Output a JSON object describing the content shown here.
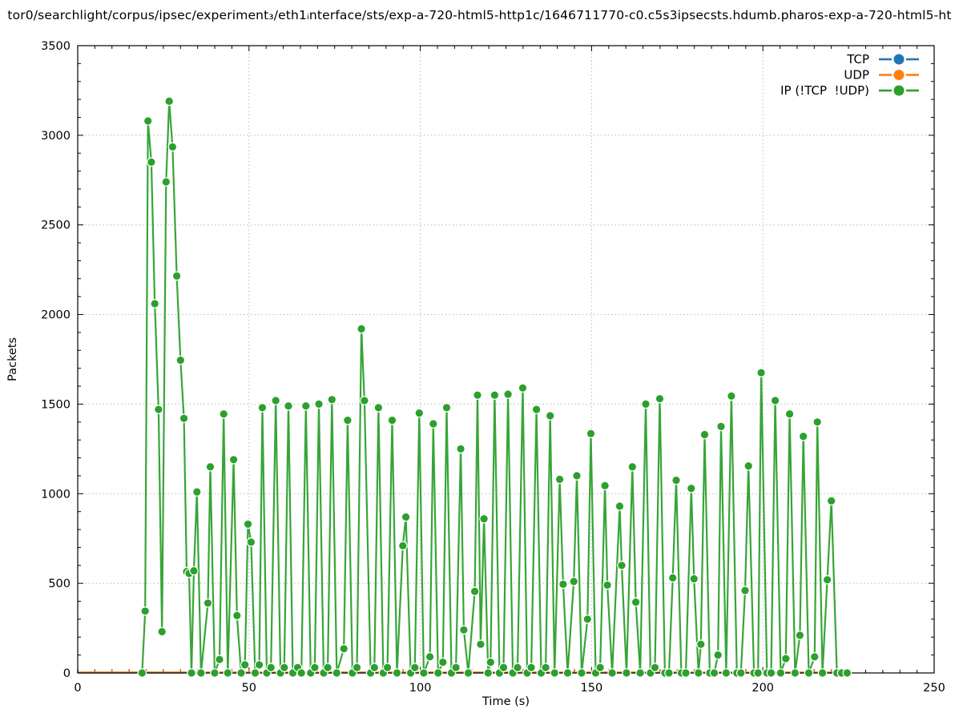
{
  "title": "tor0/searchlight/corpus/ipsec/experiment₃/eth1ᵢnterface/sts/exp-a-720-html5-http1c/1646711770-c0.c5s3ipsecsts.hdumb.pharos-exp-a-720-html5-ht",
  "colors": {
    "tcp": "#1f77b4",
    "udp": "#ff7f0e",
    "ip": "#2ca02c",
    "grid": "#b8b8b8",
    "axis": "#000000",
    "background": "#ffffff"
  },
  "legend": {
    "position": "top-right-inside",
    "entries": [
      {
        "label": "TCP",
        "color": "#1f77b4"
      },
      {
        "label": "UDP",
        "color": "#ff7f0e"
      },
      {
        "label": "IP (!TCP  !UDP)",
        "color": "#2ca02c"
      }
    ]
  },
  "chart_data": {
    "type": "line",
    "title": "tor0/searchlight/corpus/ipsec/experiment₃/eth1ᵢnterface/sts/exp-a-720-html5-http1c/1646711770-c0.c5s3ipsecsts.hdumb.pharos-exp-a-720-html5-ht",
    "xlabel": "Time (s)",
    "ylabel": "Packets",
    "xlim": [
      0,
      250
    ],
    "ylim": [
      0,
      3500
    ],
    "x_major_ticks": [
      0,
      50,
      100,
      150,
      200,
      250
    ],
    "x_minor_step": 5,
    "y_major_ticks": [
      0,
      500,
      1000,
      1500,
      2000,
      2500,
      3000,
      3500
    ],
    "y_minor_step": 100,
    "grid": "dotted-at-major-ticks",
    "marker_style": "filled-circle",
    "series": [
      {
        "name": "TCP",
        "color": "#1f77b4",
        "style": "linespoints",
        "x_range": [
          0,
          225
        ],
        "constant_value": 0,
        "point_interval_s": 5
      },
      {
        "name": "UDP",
        "color": "#ff7f0e",
        "style": "linespoints",
        "x_range": [
          0,
          225
        ],
        "constant_value": 0,
        "point_interval_s": 5
      },
      {
        "name": "IP (!TCP  !UDP)",
        "color": "#2ca02c",
        "style": "linespoints",
        "points": [
          [
            18.8,
            0
          ],
          [
            19.7,
            345
          ],
          [
            20.5,
            3080
          ],
          [
            21.5,
            2850
          ],
          [
            22.5,
            2060
          ],
          [
            23.6,
            1470
          ],
          [
            24.6,
            230
          ],
          [
            25.8,
            2740
          ],
          [
            26.7,
            3190
          ],
          [
            27.7,
            2935
          ],
          [
            28.9,
            2215
          ],
          [
            30,
            1745
          ],
          [
            31,
            1420
          ],
          [
            31.8,
            565
          ],
          [
            32.5,
            555
          ],
          [
            33.2,
            0
          ],
          [
            33.9,
            570
          ],
          [
            34.8,
            1010
          ],
          [
            36,
            0
          ],
          [
            38,
            390
          ],
          [
            38.7,
            1150
          ],
          [
            40,
            0
          ],
          [
            41.4,
            75
          ],
          [
            42.6,
            1445
          ],
          [
            43.8,
            0
          ],
          [
            45.5,
            1190
          ],
          [
            46.5,
            320
          ],
          [
            47.7,
            0
          ],
          [
            48.8,
            45
          ],
          [
            49.7,
            830
          ],
          [
            50.6,
            730
          ],
          [
            51.8,
            0
          ],
          [
            53,
            45
          ],
          [
            53.9,
            1480
          ],
          [
            55.2,
            0
          ],
          [
            56.4,
            30
          ],
          [
            57.8,
            1520
          ],
          [
            59.2,
            0
          ],
          [
            60.3,
            30
          ],
          [
            61.5,
            1490
          ],
          [
            62.8,
            0
          ],
          [
            64.2,
            30
          ],
          [
            65.3,
            0
          ],
          [
            66.6,
            1490
          ],
          [
            68,
            0
          ],
          [
            69.2,
            30
          ],
          [
            70.4,
            1500
          ],
          [
            71.8,
            0
          ],
          [
            73,
            30
          ],
          [
            74.2,
            1525
          ],
          [
            75.6,
            0
          ],
          [
            77.7,
            135
          ],
          [
            78.8,
            1410
          ],
          [
            80.2,
            0
          ],
          [
            81.5,
            30
          ],
          [
            82.8,
            1920
          ],
          [
            83.7,
            1520
          ],
          [
            85.5,
            0
          ],
          [
            86.6,
            30
          ],
          [
            87.8,
            1480
          ],
          [
            89.2,
            0
          ],
          [
            90.4,
            30
          ],
          [
            91.8,
            1410
          ],
          [
            93.2,
            0
          ],
          [
            94.9,
            710
          ],
          [
            95.8,
            870
          ],
          [
            97.2,
            0
          ],
          [
            98.4,
            30
          ],
          [
            99.7,
            1450
          ],
          [
            101,
            0
          ],
          [
            102.8,
            90
          ],
          [
            103.8,
            1390
          ],
          [
            105.2,
            0
          ],
          [
            106.6,
            60
          ],
          [
            107.7,
            1480
          ],
          [
            109.1,
            0
          ],
          [
            110.4,
            30
          ],
          [
            111.8,
            1250
          ],
          [
            112.7,
            240
          ],
          [
            114,
            0
          ],
          [
            115.9,
            455
          ],
          [
            116.7,
            1550
          ],
          [
            117.6,
            160
          ],
          [
            118.6,
            860
          ],
          [
            119.8,
            0
          ],
          [
            120.5,
            60
          ],
          [
            121.7,
            1550
          ],
          [
            123.1,
            0
          ],
          [
            124.3,
            30
          ],
          [
            125.6,
            1555
          ],
          [
            127,
            0
          ],
          [
            128.4,
            30
          ],
          [
            129.9,
            1590
          ],
          [
            131.2,
            0
          ],
          [
            132.4,
            30
          ],
          [
            133.9,
            1470
          ],
          [
            135.3,
            0
          ],
          [
            136.6,
            30
          ],
          [
            137.9,
            1435
          ],
          [
            139.2,
            0
          ],
          [
            140.7,
            1080
          ],
          [
            141.7,
            495
          ],
          [
            143,
            0
          ],
          [
            144.8,
            510
          ],
          [
            145.7,
            1100
          ],
          [
            147.1,
            0
          ],
          [
            148.8,
            300
          ],
          [
            149.8,
            1335
          ],
          [
            151.2,
            0
          ],
          [
            152.5,
            30
          ],
          [
            153.9,
            1045
          ],
          [
            154.6,
            490
          ],
          [
            156,
            0
          ],
          [
            158.2,
            930
          ],
          [
            158.8,
            600
          ],
          [
            160.2,
            0
          ],
          [
            161.9,
            1150
          ],
          [
            162.9,
            395
          ],
          [
            164.2,
            0
          ],
          [
            165.8,
            1500
          ],
          [
            167.2,
            0
          ],
          [
            168.5,
            30
          ],
          [
            169.9,
            1530
          ],
          [
            171.4,
            0
          ],
          [
            172.6,
            0
          ],
          [
            173.7,
            530
          ],
          [
            174.7,
            1075
          ],
          [
            176.2,
            0
          ],
          [
            177.5,
            0
          ],
          [
            179.1,
            1030
          ],
          [
            179.9,
            525
          ],
          [
            181.2,
            0
          ],
          [
            181.9,
            160
          ],
          [
            183,
            1330
          ],
          [
            184.5,
            0
          ],
          [
            185.8,
            0
          ],
          [
            186.9,
            100
          ],
          [
            187.8,
            1375
          ],
          [
            189.3,
            0
          ],
          [
            190.8,
            1545
          ],
          [
            192.4,
            0
          ],
          [
            193.6,
            0
          ],
          [
            194.8,
            460
          ],
          [
            195.8,
            1155
          ],
          [
            197.4,
            0
          ],
          [
            198.6,
            0
          ],
          [
            199.5,
            1675
          ],
          [
            201.2,
            0
          ],
          [
            202.4,
            0
          ],
          [
            203.6,
            1520
          ],
          [
            205.2,
            0
          ],
          [
            206.7,
            80
          ],
          [
            207.8,
            1445
          ],
          [
            209.4,
            0
          ],
          [
            210.8,
            210
          ],
          [
            211.8,
            1320
          ],
          [
            213.4,
            0
          ],
          [
            215.1,
            90
          ],
          [
            215.9,
            1400
          ],
          [
            217.4,
            0
          ],
          [
            218.8,
            520
          ],
          [
            220,
            960
          ],
          [
            221.6,
            0
          ],
          [
            223,
            0
          ],
          [
            224.6,
            0
          ]
        ]
      }
    ],
    "legend_position": "top-right inside plot, no box"
  }
}
